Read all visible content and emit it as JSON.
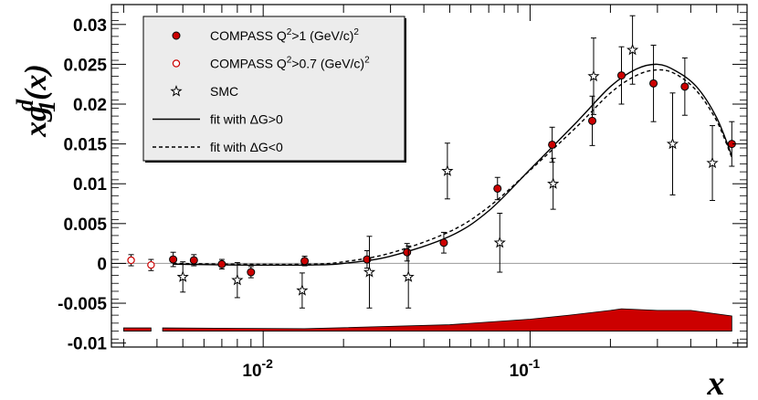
{
  "chart_data": {
    "type": "scatter",
    "xscale": "log",
    "xlim": [
      0.0027,
      0.65
    ],
    "ylim": [
      -0.0105,
      0.0325
    ],
    "xlabel": "x",
    "ylabel": {
      "prefix": "xg",
      "sup": "d",
      "sub": "1",
      "suffix": "(x)"
    },
    "y_ticks": [
      {
        "value": -0.01,
        "label": "-0.01"
      },
      {
        "value": -0.005,
        "label": "-0.005"
      },
      {
        "value": 0,
        "label": "0"
      },
      {
        "value": 0.005,
        "label": "0.005"
      },
      {
        "value": 0.01,
        "label": "0.01"
      },
      {
        "value": 0.015,
        "label": "0.015"
      },
      {
        "value": 0.02,
        "label": "0.02"
      },
      {
        "value": 0.025,
        "label": "0.025"
      },
      {
        "value": 0.03,
        "label": "0.03"
      }
    ],
    "x_ticks": [
      {
        "value": 0.01,
        "base": "10",
        "exp": "-2"
      },
      {
        "value": 0.1,
        "base": "10",
        "exp": "-1"
      }
    ],
    "series": [
      {
        "name": "COMPASS Q2>1 (GeV/c)2",
        "marker": "filled-circle",
        "color": "#cc0000",
        "points": [
          {
            "x": 0.0046,
            "y": 0.0005,
            "err": 0.0009
          },
          {
            "x": 0.0055,
            "y": 0.0004,
            "err": 0.0007
          },
          {
            "x": 0.007,
            "y": -0.0001,
            "err": 0.0006
          },
          {
            "x": 0.009,
            "y": -0.0011,
            "err": 0.0007
          },
          {
            "x": 0.0143,
            "y": 0.0003,
            "err": 0.0006
          },
          {
            "x": 0.0245,
            "y": 0.0005,
            "err": 0.0011
          },
          {
            "x": 0.0346,
            "y": 0.0014,
            "err": 0.0011
          },
          {
            "x": 0.0475,
            "y": 0.0026,
            "err": 0.0013
          },
          {
            "x": 0.0755,
            "y": 0.0094,
            "err": 0.0014
          },
          {
            "x": 0.121,
            "y": 0.0149,
            "err": 0.0022
          },
          {
            "x": 0.171,
            "y": 0.0179,
            "err": 0.0031
          },
          {
            "x": 0.22,
            "y": 0.0236,
            "err": 0.0036
          },
          {
            "x": 0.29,
            "y": 0.0226,
            "err": 0.0048
          },
          {
            "x": 0.38,
            "y": 0.0222,
            "err": 0.0036
          },
          {
            "x": 0.57,
            "y": 0.015,
            "err": 0.0028
          }
        ]
      },
      {
        "name": "COMPASS Q2>0.7 (GeV/c)2",
        "marker": "open-circle",
        "color": "#cc0000",
        "points": [
          {
            "x": 0.0032,
            "y": 0.0004,
            "err": 0.0007
          },
          {
            "x": 0.0038,
            "y": -0.0002,
            "err": 0.0007
          }
        ]
      },
      {
        "name": "SMC",
        "marker": "open-star",
        "color": "#000000",
        "points": [
          {
            "x": 0.005,
            "y": -0.0017,
            "err": 0.0019
          },
          {
            "x": 0.008,
            "y": -0.0021,
            "err": 0.0022
          },
          {
            "x": 0.014,
            "y": -0.0034,
            "err": 0.0022
          },
          {
            "x": 0.025,
            "y": -0.0011,
            "err": 0.0045
          },
          {
            "x": 0.035,
            "y": -0.0017,
            "err": 0.0039
          },
          {
            "x": 0.049,
            "y": 0.0116,
            "err": 0.0035
          },
          {
            "x": 0.077,
            "y": 0.0026,
            "err": 0.0037
          },
          {
            "x": 0.122,
            "y": 0.01,
            "err": 0.0032
          },
          {
            "x": 0.173,
            "y": 0.0235,
            "err": 0.0048
          },
          {
            "x": 0.242,
            "y": 0.0268,
            "err": 0.0043
          },
          {
            "x": 0.342,
            "y": 0.015,
            "err": 0.0064
          },
          {
            "x": 0.482,
            "y": 0.0126,
            "err": 0.0047
          }
        ]
      },
      {
        "name": "fit with ΔG>0",
        "style": "solid-line",
        "color": "#000000",
        "points": [
          [
            0.0046,
            -0.0001
          ],
          [
            0.008,
            -0.0002
          ],
          [
            0.015,
            -0.0002
          ],
          [
            0.02,
            0.0
          ],
          [
            0.03,
            0.0009
          ],
          [
            0.05,
            0.0034
          ],
          [
            0.07,
            0.0066
          ],
          [
            0.1,
            0.0118
          ],
          [
            0.15,
            0.0178
          ],
          [
            0.2,
            0.0222
          ],
          [
            0.25,
            0.0244
          ],
          [
            0.3,
            0.025
          ],
          [
            0.35,
            0.0242
          ],
          [
            0.42,
            0.0222
          ],
          [
            0.5,
            0.0183
          ],
          [
            0.57,
            0.0135
          ]
        ]
      },
      {
        "name": "fit with ΔG<0",
        "style": "dashed-line",
        "color": "#000000",
        "points": [
          [
            0.0046,
            0.0
          ],
          [
            0.008,
            -0.0001
          ],
          [
            0.015,
            -0.0001
          ],
          [
            0.02,
            0.0002
          ],
          [
            0.03,
            0.0013
          ],
          [
            0.05,
            0.004
          ],
          [
            0.07,
            0.0071
          ],
          [
            0.1,
            0.0117
          ],
          [
            0.15,
            0.0172
          ],
          [
            0.2,
            0.0214
          ],
          [
            0.25,
            0.0236
          ],
          [
            0.3,
            0.0243
          ],
          [
            0.35,
            0.0238
          ],
          [
            0.42,
            0.0217
          ],
          [
            0.5,
            0.0179
          ],
          [
            0.57,
            0.0133
          ]
        ]
      }
    ],
    "systematic_band": {
      "color": "#cc0000",
      "base": -0.0085,
      "segments": [
        [
          [
            0.003,
            -0.0081
          ],
          [
            0.0038,
            -0.0081
          ]
        ],
        [
          [
            0.0042,
            -0.0081
          ],
          [
            0.0143,
            -0.0082
          ],
          [
            0.05,
            -0.0077
          ],
          [
            0.1,
            -0.007
          ],
          [
            0.14,
            -0.0065
          ],
          [
            0.2,
            -0.0059
          ],
          [
            0.22,
            -0.0057
          ],
          [
            0.3,
            -0.0059
          ],
          [
            0.4,
            -0.0059
          ],
          [
            0.57,
            -0.0066
          ]
        ]
      ]
    },
    "zero_line": true,
    "legend": {
      "placement": "top-left",
      "entries": [
        {
          "series": 0,
          "text_before": "COMPASS Q",
          "sup1": "2",
          "text_after": ">1 (GeV/c)",
          "sup2": "2"
        },
        {
          "series": 1,
          "text_before": "COMPASS Q",
          "sup1": "2",
          "text_after": ">0.7 (GeV/c)",
          "sup2": "2"
        },
        {
          "series": 2,
          "text_before": "SMC"
        },
        {
          "series": 3,
          "text_before": "fit with ΔG>0"
        },
        {
          "series": 4,
          "text_before": "fit with ΔG<0"
        }
      ]
    }
  }
}
